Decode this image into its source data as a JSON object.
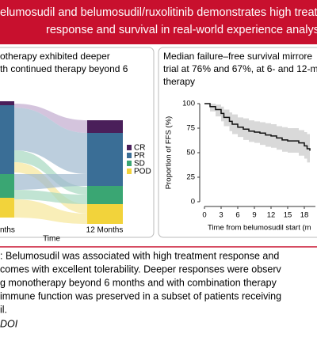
{
  "banner": {
    "lines": [
      "elumosudil and belumosudil/ruxolitinib demonstrates high treatme",
      "response and survival in real-world experience analysis"
    ]
  },
  "left_panel": {
    "lines": [
      "otherapy exhibited deeper",
      "th continued therapy beyond 6"
    ],
    "legend": [
      "CR",
      "PR",
      "SD",
      "POD"
    ],
    "x_labels": [
      "nths",
      "12 Months"
    ],
    "x_axis_title": "Time"
  },
  "right_panel": {
    "lines": [
      "Median failure–free survival mirrore",
      "trial at 76% and 67%, at 6- and 12-m",
      "therapy"
    ]
  },
  "chart_data": {
    "type": "line",
    "ylabel": "Proportion of FFS (%)",
    "xlabel": "Time from belumosudil start (m",
    "x": [
      0,
      1,
      2,
      3,
      3.5,
      4.5,
      5,
      6,
      7,
      8,
      9,
      10,
      11,
      12,
      13,
      14,
      15,
      16,
      17,
      18,
      18.5,
      19
    ],
    "series": [
      {
        "color": "#111111",
        "values": [
          100,
          97,
          94,
          90,
          86,
          82,
          79,
          76,
          74,
          72,
          71,
          70,
          68,
          67,
          65,
          63,
          62,
          62,
          60,
          57,
          54,
          52
        ]
      }
    ],
    "ci_lower": [
      100,
      92,
      87,
      82,
      77,
      72,
      69,
      66,
      63,
      61,
      60,
      58,
      56,
      55,
      53,
      51,
      50,
      50,
      47,
      44,
      40,
      37
    ],
    "ci_upper": [
      100,
      100,
      99,
      97,
      94,
      91,
      89,
      86,
      85,
      83,
      82,
      81,
      80,
      79,
      77,
      76,
      75,
      75,
      73,
      71,
      69,
      68
    ],
    "band_color": "#cfcfcf",
    "xlim": [
      0,
      20
    ],
    "ylim": [
      0,
      100
    ],
    "xticks": [
      0,
      3,
      6,
      9,
      12,
      15,
      18
    ],
    "yticks": [
      0,
      25,
      50,
      75,
      100
    ]
  },
  "conclusion": {
    "lines": [
      ": Belumosudil was associated with high treatment response and",
      "comes with excellent tolerability. Deeper responses were observ",
      "g monotherapy beyond 6 months and with combination therapy",
      "immune function was preserved in a subset of patients receiving",
      "il."
    ],
    "doi": "DOI"
  }
}
